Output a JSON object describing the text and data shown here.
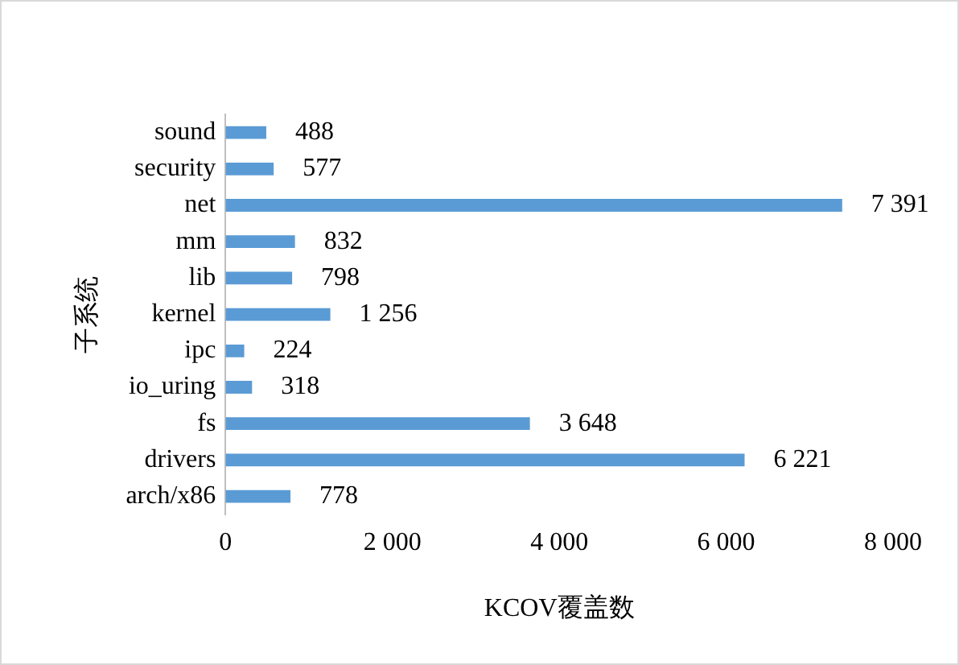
{
  "chart_data": {
    "type": "bar",
    "orientation": "horizontal",
    "xlabel": "KCOV覆盖数",
    "ylabel": "子系统",
    "categories": [
      "sound",
      "security",
      "net",
      "mm",
      "lib",
      "kernel",
      "ipc",
      "io_uring",
      "fs",
      "drivers",
      "arch/x86"
    ],
    "values": [
      488,
      577,
      7391,
      832,
      798,
      1256,
      224,
      318,
      3648,
      6221,
      778
    ],
    "value_labels": [
      "488",
      "577",
      "7 391",
      "832",
      "798",
      "1 256",
      "224",
      "318",
      "3 648",
      "6 221",
      "778"
    ],
    "color": "#5b9bd5",
    "xlim": [
      0,
      8000
    ],
    "xticks": [
      0,
      {
        "value": 2000,
        "label": "2 000"
      },
      {
        "value": 4000,
        "label": "4 000"
      },
      {
        "value": 6000,
        "label": "6 000"
      },
      {
        "value": 8000,
        "label": "8 000"
      }
    ],
    "grid": false,
    "legend": false
  }
}
